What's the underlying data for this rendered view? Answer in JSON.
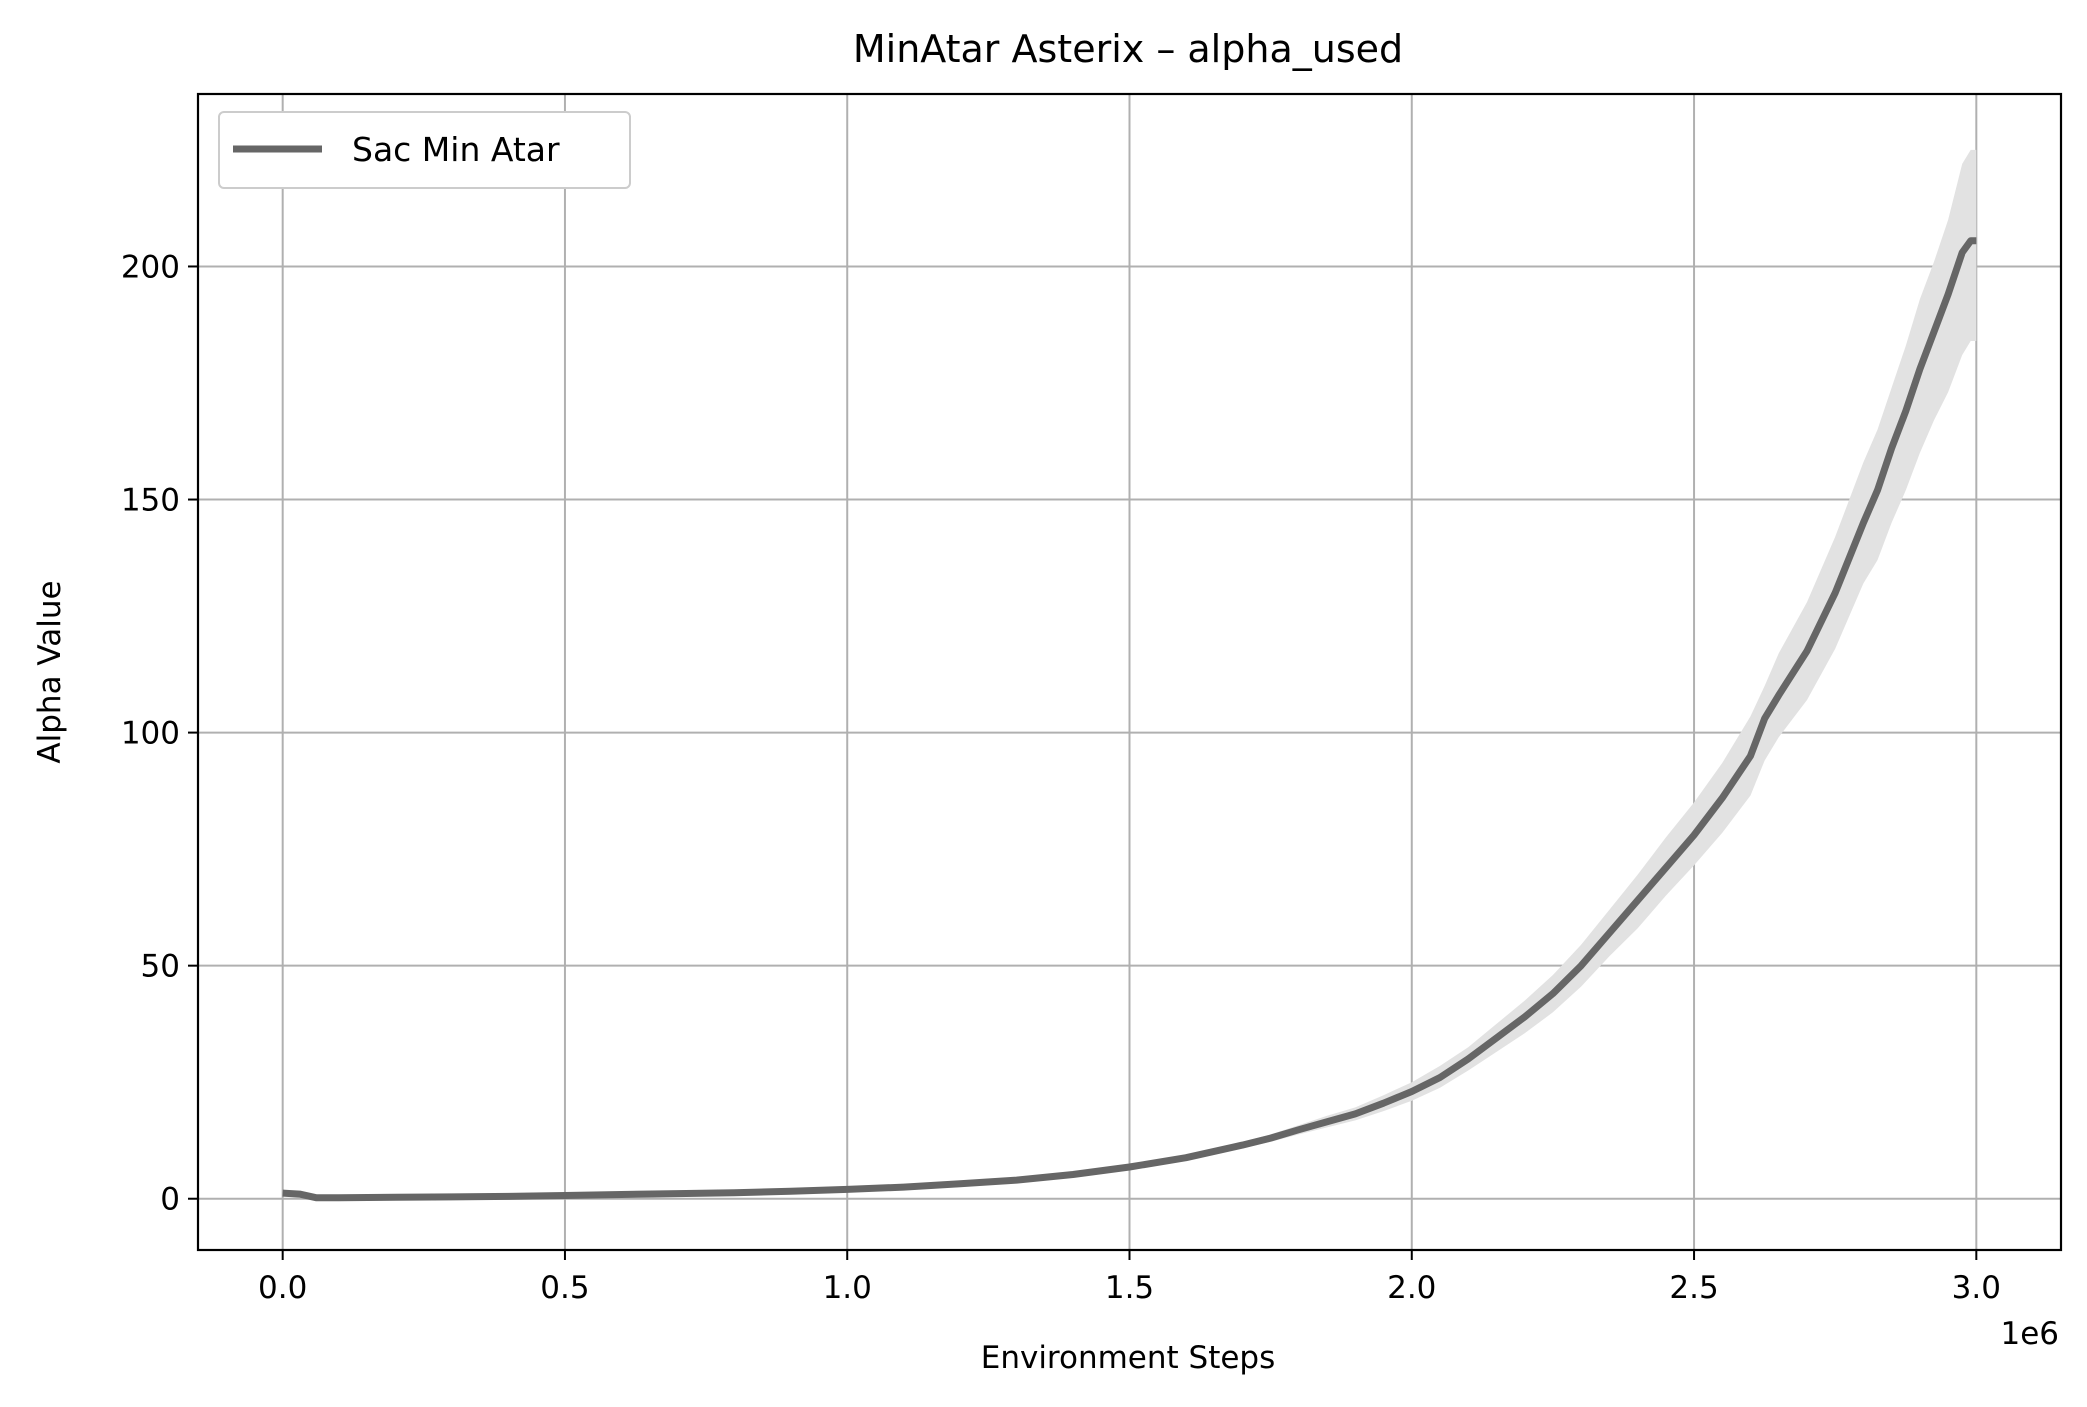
{
  "chart_data": {
    "type": "line",
    "title": "MinAtar Asterix – alpha_used",
    "xlabel": "Environment Steps",
    "ylabel": "Alpha Value",
    "x_offset_label": "1e6",
    "xlim": [
      -0.15,
      3.15
    ],
    "ylim": [
      -11,
      237
    ],
    "xticks": [
      0.0,
      0.5,
      1.0,
      1.5,
      2.0,
      2.5,
      3.0
    ],
    "xtick_labels": [
      "0.0",
      "0.5",
      "1.0",
      "1.5",
      "2.0",
      "2.5",
      "3.0"
    ],
    "yticks": [
      0,
      50,
      100,
      150,
      200
    ],
    "ytick_labels": [
      "0",
      "50",
      "100",
      "150",
      "200"
    ],
    "grid": true,
    "legend_position": "upper-left",
    "line_color": "#666666",
    "band_color": "#e2e2e2",
    "series": [
      {
        "name": "Sac Min Atar",
        "x": [
          0.0,
          0.03,
          0.06,
          0.1,
          0.2,
          0.3,
          0.4,
          0.5,
          0.6,
          0.7,
          0.8,
          0.9,
          1.0,
          1.1,
          1.2,
          1.3,
          1.4,
          1.5,
          1.6,
          1.7,
          1.75,
          1.8,
          1.85,
          1.9,
          1.95,
          2.0,
          2.05,
          2.1,
          2.15,
          2.2,
          2.25,
          2.3,
          2.35,
          2.4,
          2.45,
          2.5,
          2.55,
          2.6,
          2.625,
          2.65,
          2.7,
          2.75,
          2.8,
          2.825,
          2.85,
          2.875,
          2.9,
          2.925,
          2.95,
          2.975,
          2.99,
          3.0
        ],
        "values": [
          1.2,
          1.0,
          0.2,
          0.2,
          0.3,
          0.4,
          0.5,
          0.7,
          0.9,
          1.1,
          1.3,
          1.6,
          2.0,
          2.5,
          3.2,
          4.0,
          5.2,
          6.8,
          8.8,
          11.5,
          13.0,
          14.8,
          16.5,
          18.2,
          20.5,
          23.0,
          26.0,
          30.0,
          34.5,
          39.0,
          44.0,
          50.0,
          57.0,
          64.0,
          71.0,
          78.0,
          86.0,
          95.0,
          103.0,
          108.0,
          117.5,
          130.0,
          145.0,
          152.0,
          161.0,
          169.0,
          178.0,
          186.0,
          194.0,
          203.0,
          205.5,
          205.5
        ],
        "lower": [
          1.2,
          1.0,
          0.2,
          0.2,
          0.3,
          0.4,
          0.5,
          0.7,
          0.9,
          1.1,
          1.3,
          1.6,
          2.0,
          2.4,
          3.0,
          3.8,
          4.9,
          6.4,
          8.3,
          10.8,
          12.2,
          13.8,
          15.3,
          16.8,
          18.8,
          21.0,
          23.8,
          27.5,
          31.5,
          35.5,
          40.0,
          45.5,
          52.0,
          58.0,
          65.0,
          71.5,
          78.5,
          86.5,
          94.0,
          99.0,
          107.0,
          118.0,
          132.0,
          137.0,
          145.0,
          152.0,
          160.0,
          167.0,
          173.0,
          181.0,
          184.0,
          184.0
        ],
        "upper": [
          1.2,
          1.0,
          0.2,
          0.2,
          0.3,
          0.4,
          0.5,
          0.7,
          0.9,
          1.1,
          1.3,
          1.6,
          2.0,
          2.6,
          3.4,
          4.3,
          5.5,
          7.2,
          9.4,
          12.2,
          13.8,
          15.8,
          17.8,
          19.6,
          22.2,
          25.0,
          28.5,
          32.5,
          37.5,
          42.5,
          48.0,
          54.5,
          62.0,
          69.5,
          77.5,
          85.0,
          93.5,
          103.5,
          110.0,
          117.0,
          128.0,
          142.0,
          158.0,
          165.0,
          174.0,
          183.0,
          193.0,
          201.0,
          210.0,
          222.0,
          225.0,
          225.0
        ]
      }
    ]
  }
}
